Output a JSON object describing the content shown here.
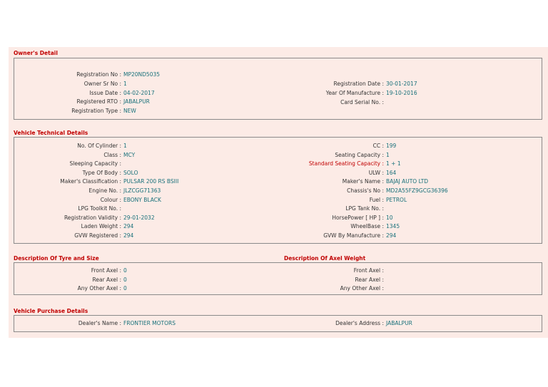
{
  "sections": [
    {
      "title": "Owner's Detail",
      "left": [
        {
          "label": "Registration No :",
          "value": "MP20ND5035"
        },
        {
          "label": "Owner Sr No :",
          "value": "1"
        },
        {
          "label": "Issue Date :",
          "value": "04-02-2017"
        },
        {
          "label": "Registered RTO :",
          "value": "JABALPUR"
        },
        {
          "label": "Registration Type :",
          "value": "NEW"
        }
      ],
      "right": [
        {
          "label": "Registration Date :",
          "value": "30-01-2017"
        },
        {
          "label": "Year Of Manufacture :",
          "value": "19-10-2016"
        },
        {
          "label": "Card Serial No. :"
        }
      ]
    },
    {
      "title": "Vehicle Technical Details",
      "left": [
        {
          "label": "No. Of Cylinder :",
          "value": "1"
        },
        {
          "label": "Class :",
          "value": "MCY"
        },
        {
          "label": "Sleeping Capacity :"
        },
        {
          "label": "Type Of Body :",
          "value": "SOLO"
        },
        {
          "label": "Maker's Classification :",
          "value": "PULSAR 200 RS BSIII"
        },
        {
          "label": "Engine No. :",
          "value": "JLZCGG71363"
        },
        {
          "label": "Colour :",
          "value": "EBONY BLACK"
        },
        {
          "label": "LPG Toolkit No. :"
        },
        {
          "label": "Registration Validity :",
          "value": "29-01-2032"
        },
        {
          "label": "Laden Weight :",
          "value": "294"
        },
        {
          "label": "GVW Registered :",
          "value": "294"
        }
      ],
      "right": [
        {
          "label": "CC :",
          "value": "199"
        },
        {
          "label": "Seating Capacity :",
          "value": "1"
        },
        {
          "label": "Standard Seating Capacity :",
          "value": "1 + 1",
          "label_color": "#c00000"
        },
        {
          "label": "ULW :",
          "value": "164"
        },
        {
          "label": "Maker's Name :",
          "value": "BAJAJ AUTO LTD"
        },
        {
          "label": "Chassis's No :",
          "value": "MD2A55FZ9GCG36396"
        },
        {
          "label": "Fuel :",
          "value": "PETROL"
        },
        {
          "label": "LPG Tank No. :"
        },
        {
          "label": "HorsePower [ HP ] :",
          "value": "10"
        },
        {
          "label": "WheelBase :",
          "value": "1345"
        },
        {
          "label": "GVW By Manufacture :",
          "value": "294"
        }
      ]
    },
    {
      "title": "Description Of Tyre and Size",
      "title_right": "Description Of Axel Weight",
      "left": [
        {
          "label": "Front Axel :",
          "value": "0"
        },
        {
          "label": "Rear Axel :",
          "value": "0"
        },
        {
          "label": "Any Other Axel :",
          "value": "0"
        }
      ],
      "right": [
        {
          "label": "Front Axel :"
        },
        {
          "label": "Rear Axel :"
        },
        {
          "label": "Any Other Axel :"
        }
      ]
    },
    {
      "title": "Vehicle Purchase Details",
      "left": [
        {
          "label": "Dealer's Name :",
          "value": "FRONTIER MOTORS"
        }
      ],
      "right": [
        {
          "label": "Dealer's Address :",
          "value": "JABALPUR"
        }
      ]
    }
  ]
}
